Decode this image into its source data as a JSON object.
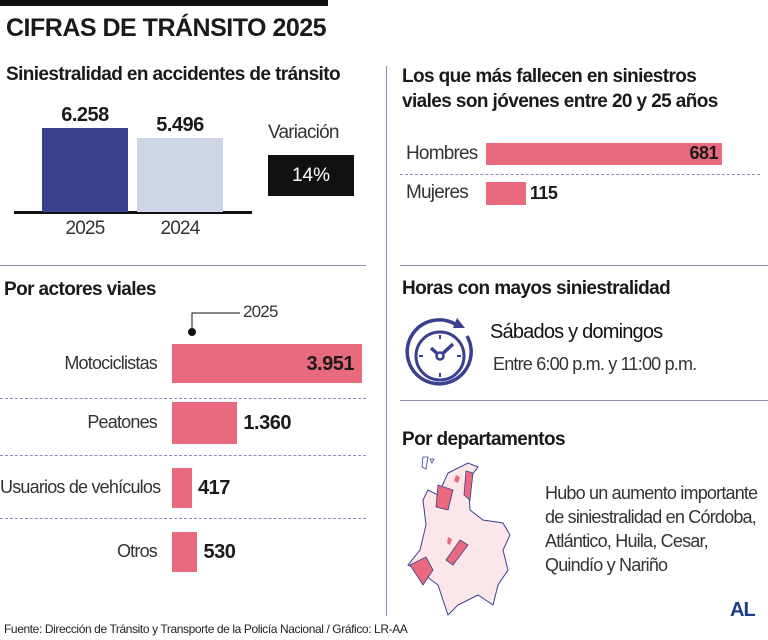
{
  "title": "CIFRAS DE TRÁNSITO 2025",
  "source": "Fuente: Dirección de Tránsito y Transporte de la Policía Nacional / Gráfico: LR-AA",
  "logo": "AL",
  "colors": {
    "navy": "#3a3f8f",
    "light": "#cdd5e6",
    "pink": "#e96a7e",
    "map_fill": "#fbe6ea",
    "map_line": "#3a3f8f"
  },
  "hours": {
    "title": "Horas con mayos siniestralidad",
    "icon": "clock-icon",
    "days": "Sábados y domingos",
    "range": "Entre 6:00 p.m. y 11:00 p.m."
  },
  "departments": {
    "title": "Por departamentos",
    "text": [
      "Hubo un aumento importante",
      "de siniestralidad en Córdoba,",
      "Atlántico, Huila, Cesar,",
      "Quindío y Nariño"
    ]
  },
  "chart_data": [
    {
      "type": "bar",
      "title": "Siniestralidad en accidentes de tránsito",
      "categories": [
        "2025",
        "2024"
      ],
      "values": [
        6258,
        5496
      ],
      "labels": [
        "6.258",
        "5.496"
      ],
      "variation_label": "Variación",
      "variation": "14%"
    },
    {
      "type": "bar",
      "orientation": "horizontal",
      "title_lines": [
        "Los que más fallecen en siniestros",
        "viales son jóvenes entre 20 y 25 años"
      ],
      "categories": [
        "Hombres",
        "Mujeres"
      ],
      "values": [
        681,
        115
      ],
      "labels": [
        "681",
        "115"
      ]
    },
    {
      "type": "bar",
      "orientation": "horizontal",
      "title": "Por actores viales",
      "series_label": "2025",
      "categories": [
        "Motociclistas",
        "Peatones",
        "Usuarios de vehículos",
        "Otros"
      ],
      "values": [
        3951,
        1360,
        417,
        530
      ],
      "labels": [
        "3.951",
        "1.360",
        "417",
        "530"
      ]
    }
  ]
}
